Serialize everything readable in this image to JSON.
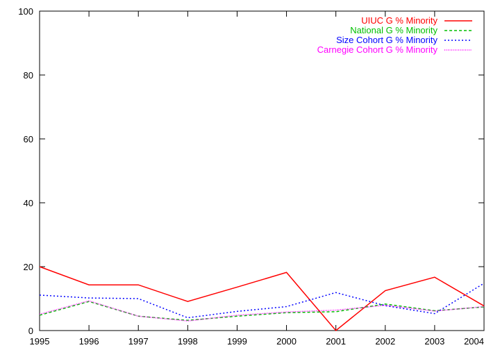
{
  "chart_data": {
    "type": "line",
    "x": [
      1995,
      1996,
      1997,
      1998,
      1999,
      2000,
      2001,
      2002,
      2003,
      2004
    ],
    "xlim": [
      1995,
      2004
    ],
    "ylim": [
      0,
      100
    ],
    "x_ticks": [
      "1995",
      "1996",
      "1997",
      "1998",
      "1999",
      "2000",
      "2001",
      "2002",
      "2003",
      "2004"
    ],
    "y_ticks": [
      "0",
      "20",
      "40",
      "60",
      "80",
      "100"
    ],
    "legend_position": "top-right",
    "grid": false,
    "series": [
      {
        "name": "UIUC G % Minority",
        "color": "#ff0000",
        "dash": "solid",
        "values": [
          20.0,
          14.3,
          14.3,
          9.1,
          13.6,
          18.2,
          0.0,
          12.5,
          16.7,
          7.7
        ]
      },
      {
        "name": "National G % Minority",
        "color": "#00c000",
        "dash": "dashed",
        "values": [
          4.8,
          9.1,
          4.5,
          3.2,
          4.5,
          5.6,
          5.9,
          8.3,
          6.2,
          7.4
        ]
      },
      {
        "name": "Size Cohort G % Minority",
        "color": "#0000ff",
        "dash": "dotted",
        "values": [
          11.1,
          10.2,
          10.0,
          4.0,
          6.0,
          7.5,
          11.9,
          7.8,
          5.3,
          14.8
        ]
      },
      {
        "name": "Carnegie Cohort G % Minority",
        "color": "#ff00ff",
        "dash": "fine-dotted",
        "values": [
          5.1,
          9.3,
          4.5,
          3.0,
          4.8,
          5.8,
          6.4,
          7.9,
          6.1,
          7.5
        ]
      }
    ]
  }
}
